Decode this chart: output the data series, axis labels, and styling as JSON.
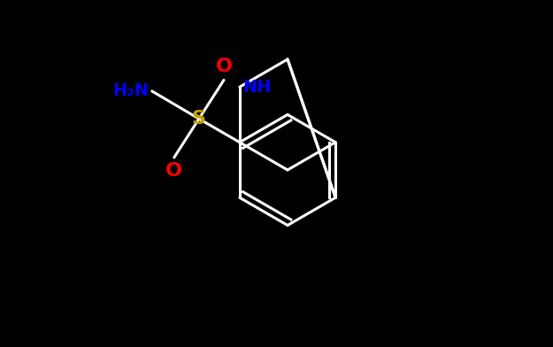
{
  "background_color": "#000000",
  "bond_color": "#ffffff",
  "atom_colors": {
    "O": "#ff0000",
    "S": "#c8a000",
    "N_amine": "#0000ff",
    "N_ring": "#0000ff"
  },
  "figsize": [
    6.25,
    3.92
  ],
  "dpi": 100,
  "xlim": [
    0,
    10
  ],
  "ylim": [
    0,
    6.272
  ]
}
